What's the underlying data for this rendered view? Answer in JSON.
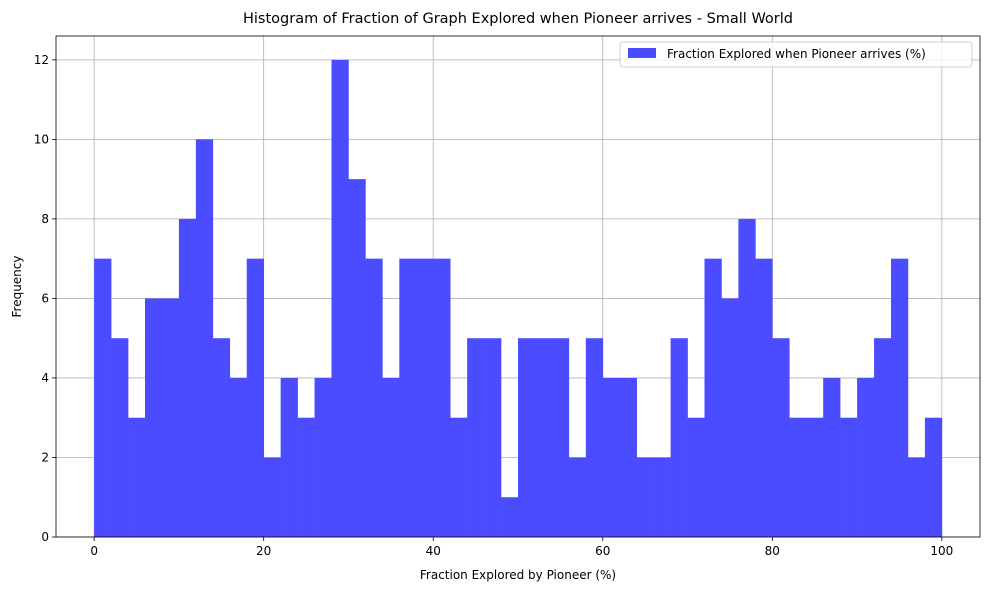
{
  "chart_data": {
    "type": "bar",
    "title": "Histogram of Fraction of Graph Explored when Pioneer arrives - Small World",
    "xlabel": "Fraction Explored by Pioneer (%)",
    "ylabel": "Frequency",
    "xlim": [
      -4.5,
      104.5
    ],
    "ylim": [
      0,
      12.6
    ],
    "x_ticks": [
      0,
      20,
      40,
      60,
      80,
      100
    ],
    "y_ticks": [
      0,
      2,
      4,
      6,
      8,
      10,
      12
    ],
    "grid": true,
    "legend_position": "top-right",
    "bar_color": "#4b4bff",
    "bin_start": 0,
    "bin_width": 2,
    "series": [
      {
        "name": "Fraction Explored when Pioneer arrives (%)",
        "values": [
          7,
          5,
          3,
          6,
          6,
          8,
          10,
          5,
          4,
          7,
          2,
          4,
          3,
          4,
          12,
          9,
          7,
          4,
          7,
          7,
          7,
          3,
          5,
          5,
          1,
          5,
          5,
          5,
          2,
          5,
          4,
          4,
          2,
          2,
          5,
          3,
          7,
          6,
          8,
          7,
          5,
          3,
          3,
          4,
          3,
          4,
          5,
          7,
          2,
          3
        ]
      }
    ]
  }
}
